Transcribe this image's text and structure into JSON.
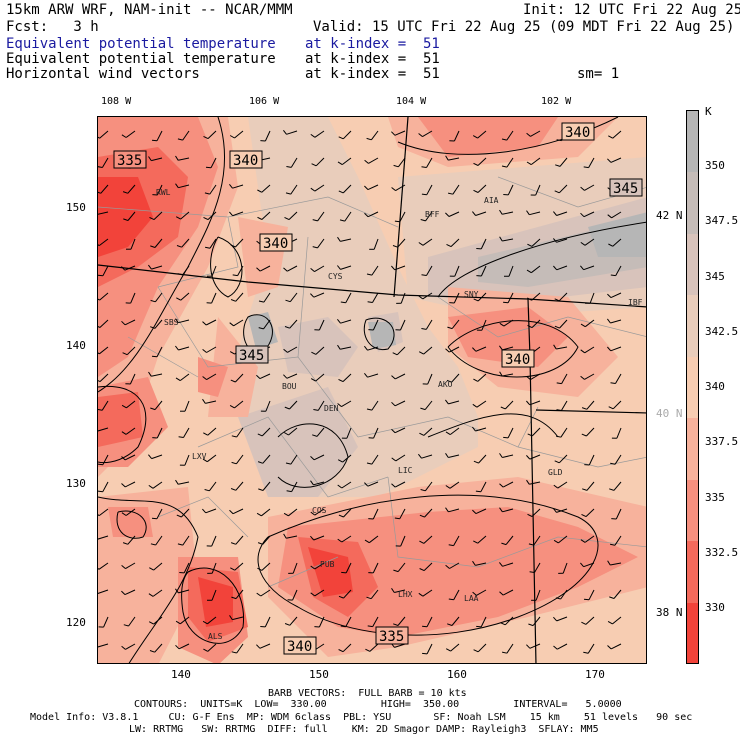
{
  "header": {
    "model": "15km ARW WRF, NAM-init -- NCAR/MMM",
    "init": "Init: 12 UTC Fri 22 Aug 25",
    "fcst": "Fcst:   3 h",
    "valid": "Valid: 15 UTC Fri 22 Aug 25 (09 MDT Fri 22 Aug 25)",
    "line1_field": "Equivalent potential temperature",
    "line1_level": "at k-index =  51",
    "line2_field": "Equivalent potential temperature",
    "line2_level": "at k-index =  51",
    "line3_field": "Horizontal wind vectors",
    "line3_level": "at k-index =  51",
    "smooth": "sm= 1"
  },
  "map": {
    "lon_labels": [
      "108 W",
      "106 W",
      "104 W",
      "102 W"
    ],
    "lat_labels": [
      "42 N",
      "40 N",
      "38 N"
    ],
    "grid_x_labels": [
      "140",
      "150",
      "160",
      "170"
    ],
    "grid_y_labels": [
      "150",
      "140",
      "130",
      "120"
    ],
    "stations": [
      "RWL",
      "CYS",
      "BFF",
      "AIA",
      "SNY",
      "SBS",
      "BOU",
      "DEN",
      "AKO",
      "LXV",
      "LIC",
      "GLD",
      "COS",
      "PUB",
      "LHX",
      "LAA",
      "ALS",
      "IBF"
    ],
    "contour_labels": [
      "335",
      "340",
      "340",
      "340",
      "345",
      "345",
      "340",
      "335",
      "340"
    ],
    "contour_levels": [
      330,
      335,
      340,
      345,
      350
    ],
    "colors": {
      "c330": "#f2433a",
      "c332": "#f46a5c",
      "c335": "#f6907f",
      "c337": "#f7b29c",
      "c340": "#f7cdb2",
      "c342": "#e9cdbb",
      "c345": "#d8c3bb",
      "c347": "#c5bcb8",
      "c350": "#b6b6b6"
    }
  },
  "colorbar": {
    "unit": "K",
    "labels": [
      "350",
      "347.5",
      "345",
      "342.5",
      "340",
      "337.5",
      "335",
      "332.5",
      "330"
    ]
  },
  "footer": {
    "barb": "BARB VECTORS:  FULL BARB = 10 kts",
    "contours": "CONTOURS:  UNITS=K  LOW=  330.00         HIGH=  350.00         INTERVAL=   5.0000",
    "model_info": "Model Info: V3.8.1     CU: G-F Ens  MP: WDM 6class  PBL: YSU       SF: Noah LSM    15 km    51 levels   90 sec",
    "physics": "LW: RRTMG   SW: RRTMG  DIFF: full    KM: 2D Smagor DAMP: Rayleigh3  SFLAY: MM5"
  }
}
